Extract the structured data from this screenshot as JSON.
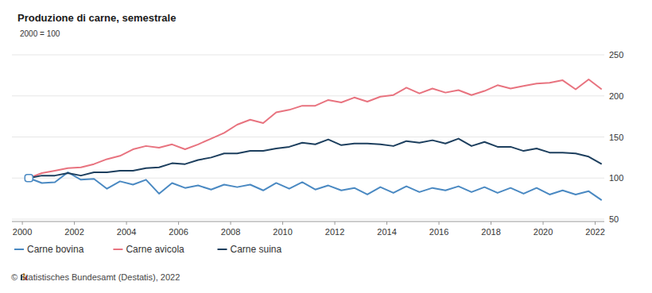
{
  "chart_data": {
    "type": "line",
    "title": "Produzione di carne, semestrale",
    "subtitle": "2000 = 100",
    "source": "© Statistisches Bundesamt (Destatis), 2022",
    "x": [
      2000.25,
      2000.75,
      2001.25,
      2001.75,
      2002.25,
      2002.75,
      2003.25,
      2003.75,
      2004.25,
      2004.75,
      2005.25,
      2005.75,
      2006.25,
      2006.75,
      2007.25,
      2007.75,
      2008.25,
      2008.75,
      2009.25,
      2009.75,
      2010.25,
      2010.75,
      2011.25,
      2011.75,
      2012.25,
      2012.75,
      2013.25,
      2013.75,
      2014.25,
      2014.75,
      2015.25,
      2015.75,
      2016.25,
      2016.75,
      2017.25,
      2017.75,
      2018.25,
      2018.75,
      2019.25,
      2019.75,
      2020.25,
      2020.75,
      2021.25,
      2021.75,
      2022.25
    ],
    "series": [
      {
        "name": "Carne bovina",
        "color": "#4a89c2",
        "values": [
          100,
          94,
          95,
          107,
          98,
          99,
          87,
          96,
          92,
          98,
          81,
          94,
          88,
          91,
          86,
          92,
          89,
          92,
          85,
          94,
          87,
          95,
          86,
          91,
          85,
          88,
          80,
          89,
          82,
          90,
          83,
          88,
          85,
          90,
          83,
          89,
          82,
          88,
          81,
          88,
          80,
          85,
          80,
          84,
          73
        ]
      },
      {
        "name": "Carne avicola",
        "color": "#e8737f",
        "values": [
          100,
          106,
          109,
          112,
          113,
          117,
          123,
          127,
          135,
          139,
          137,
          141,
          135,
          141,
          148,
          155,
          165,
          171,
          167,
          180,
          183,
          188,
          188,
          195,
          192,
          198,
          193,
          199,
          201,
          210,
          203,
          209,
          204,
          207,
          201,
          206,
          213,
          209,
          212,
          215,
          216,
          219,
          208,
          220,
          208
        ]
      },
      {
        "name": "Carne suina",
        "color": "#1d3f5e",
        "values": [
          100,
          103,
          103,
          106,
          103,
          107,
          107,
          109,
          109,
          112,
          113,
          118,
          117,
          122,
          125,
          130,
          130,
          133,
          133,
          136,
          138,
          143,
          141,
          147,
          140,
          142,
          142,
          141,
          139,
          145,
          143,
          146,
          142,
          148,
          139,
          144,
          138,
          138,
          133,
          136,
          131,
          131,
          130,
          126,
          117
        ]
      }
    ],
    "xlim": [
      1999.6,
      2022.35
    ],
    "xticks": [
      2000,
      2002,
      2004,
      2006,
      2008,
      2010,
      2012,
      2014,
      2016,
      2018,
      2020,
      2022
    ],
    "ylim": [
      50,
      250
    ],
    "yticks": [
      50,
      100,
      150,
      200,
      250
    ],
    "grid": true,
    "legend": "bottom-left"
  }
}
